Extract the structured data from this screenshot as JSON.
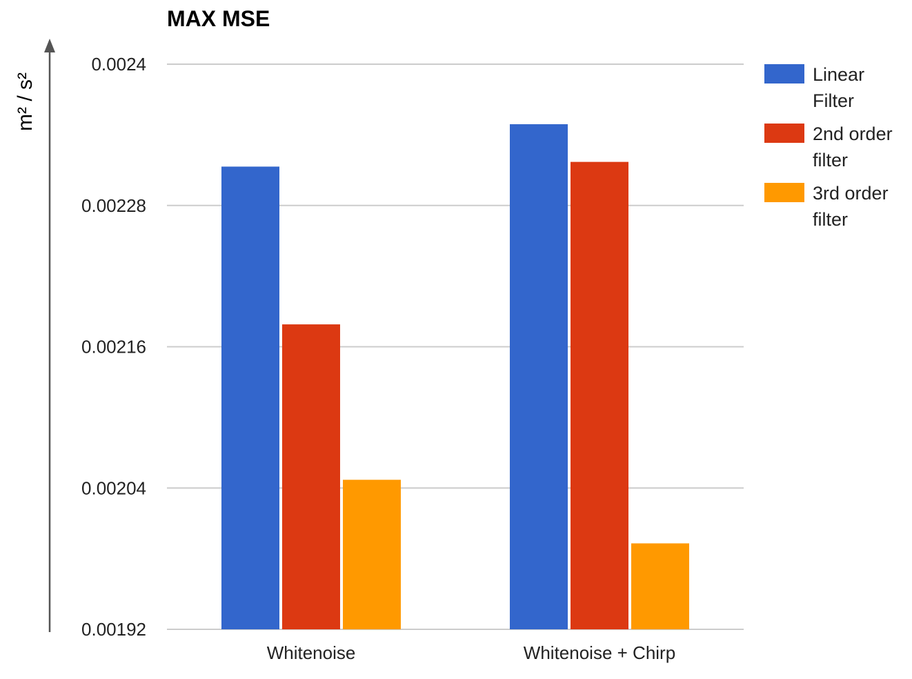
{
  "chart_data": {
    "type": "bar",
    "title": "MAX MSE",
    "ylabel": "m² / s²",
    "categories": [
      "Whitenoise",
      "Whitenoise + Chirp"
    ],
    "series": [
      {
        "name": "Linear Filter",
        "color": "#3366cc",
        "values": [
          0.002313,
          0.002349
        ]
      },
      {
        "name": "2nd order filter",
        "color": "#dc3912",
        "values": [
          0.002179,
          0.002317
        ]
      },
      {
        "name": "3rd order filter",
        "color": "#ff9900",
        "values": [
          0.002047,
          0.001993
        ]
      }
    ],
    "ylim": [
      0.00192,
      0.0024
    ],
    "yticks": [
      "0.0024",
      "0.00228",
      "0.00216",
      "0.00204",
      "0.00192"
    ],
    "ytick_values": [
      0.0024,
      0.00228,
      0.00216,
      0.00204,
      0.00192
    ],
    "grid": true,
    "legend_position": "right"
  }
}
